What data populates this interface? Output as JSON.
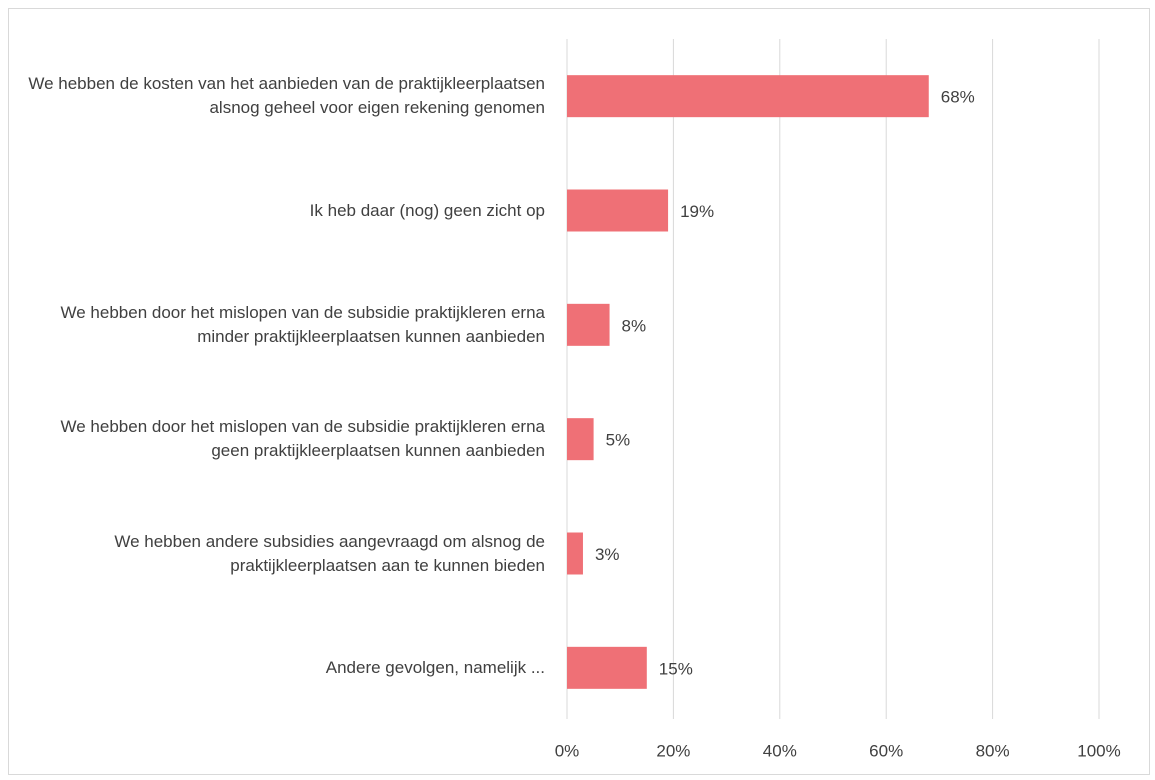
{
  "chart_data": {
    "type": "bar",
    "orientation": "horizontal",
    "categories": [
      "We hebben de kosten van het aanbieden van de praktijkleerplaatsen alsnog geheel voor eigen rekening genomen",
      "Ik heb daar (nog) geen zicht op",
      "We hebben door het mislopen van de subsidie praktijkleren erna minder praktijkleerplaatsen kunnen aanbieden",
      "We hebben door het mislopen van de subsidie praktijkleren erna geen praktijkleerplaatsen kunnen aanbieden",
      "We hebben andere subsidies aangevraagd om alsnog de praktijkleerplaatsen aan te kunnen bieden",
      "Andere gevolgen, namelijk ..."
    ],
    "values": [
      68,
      19,
      8,
      5,
      3,
      15
    ],
    "value_labels": [
      "68%",
      "19%",
      "8%",
      "5%",
      "3%",
      "15%"
    ],
    "color": "#ef7076",
    "xlim": [
      0,
      100
    ],
    "xticks": [
      {
        "value": 0,
        "label": "0%"
      },
      {
        "value": 20,
        "label": "20%"
      },
      {
        "value": 40,
        "label": "40%"
      },
      {
        "value": 60,
        "label": "60%"
      },
      {
        "value": 80,
        "label": "80%"
      },
      {
        "value": 100,
        "label": "100%"
      }
    ],
    "grid": true
  }
}
